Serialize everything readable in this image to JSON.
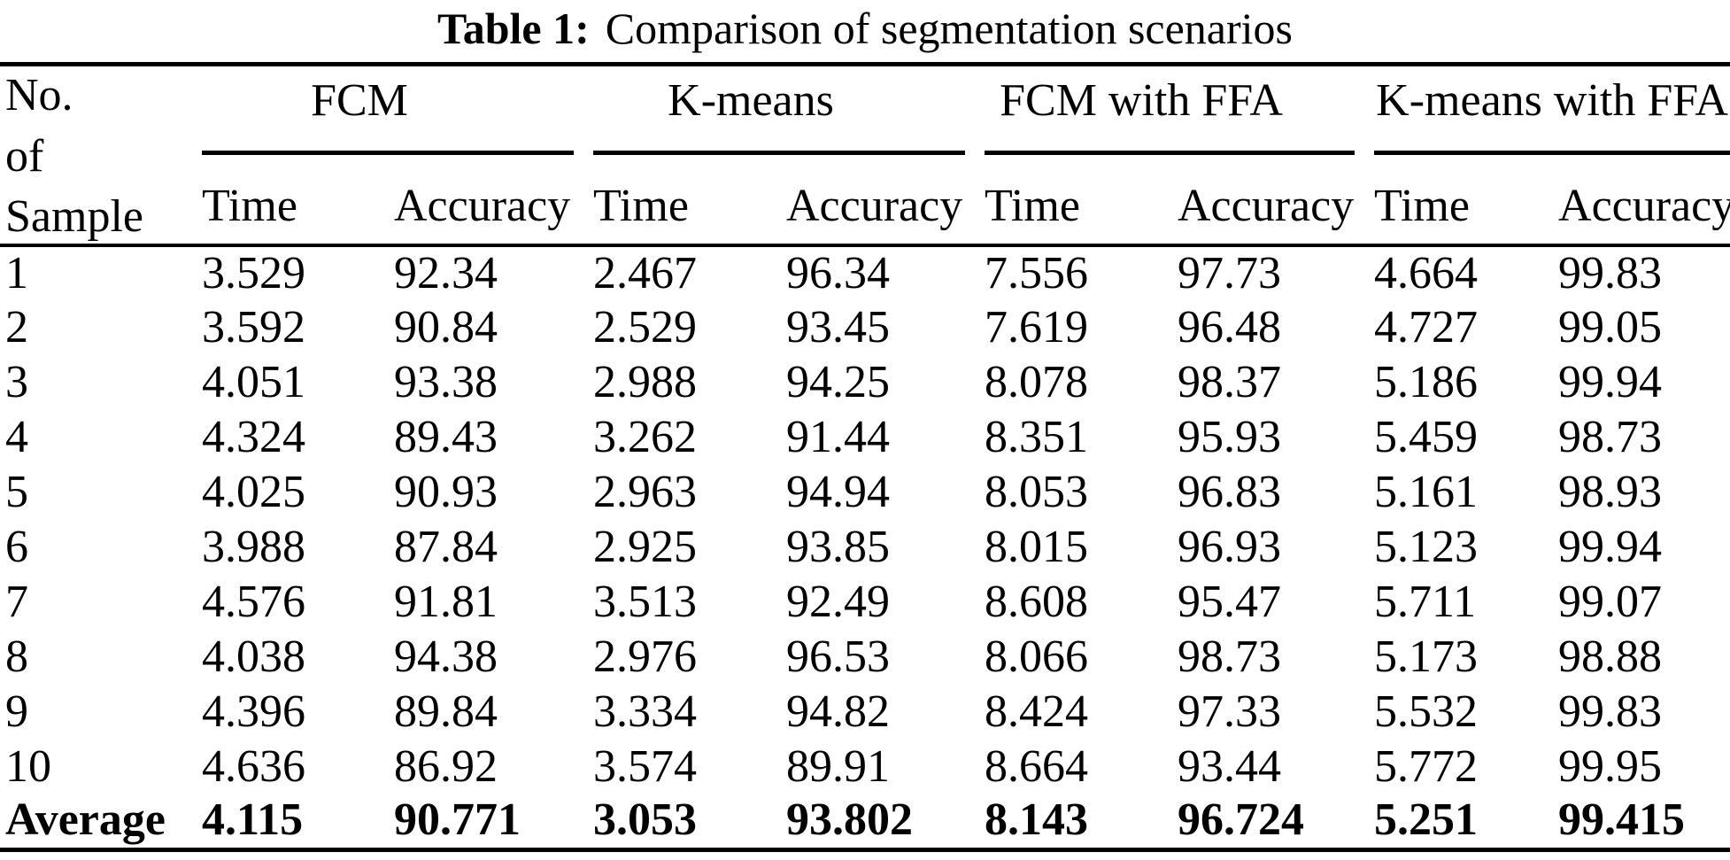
{
  "title": {
    "label": "Table 1:",
    "caption": "Comparison of segmentation scenarios"
  },
  "table": {
    "row_header": {
      "lines": [
        "No.",
        "of",
        "Sample"
      ]
    },
    "groups": [
      {
        "label": "FCM"
      },
      {
        "label": "K-means"
      },
      {
        "label": "FCM with FFA"
      },
      {
        "label": "K-means with FFA"
      }
    ],
    "sub_headers": [
      "Time",
      "Accuracy"
    ],
    "rows": [
      {
        "sample": "1",
        "bold": false,
        "values": [
          "3.529",
          "92.34",
          "2.467",
          "96.34",
          "7.556",
          "97.73",
          "4.664",
          "99.83"
        ]
      },
      {
        "sample": "2",
        "bold": false,
        "values": [
          "3.592",
          "90.84",
          "2.529",
          "93.45",
          "7.619",
          "96.48",
          "4.727",
          "99.05"
        ]
      },
      {
        "sample": "3",
        "bold": false,
        "values": [
          "4.051",
          "93.38",
          "2.988",
          "94.25",
          "8.078",
          "98.37",
          "5.186",
          "99.94"
        ]
      },
      {
        "sample": "4",
        "bold": false,
        "values": [
          "4.324",
          "89.43",
          "3.262",
          "91.44",
          "8.351",
          "95.93",
          "5.459",
          "98.73"
        ]
      },
      {
        "sample": "5",
        "bold": false,
        "values": [
          "4.025",
          "90.93",
          "2.963",
          "94.94",
          "8.053",
          "96.83",
          "5.161",
          "98.93"
        ]
      },
      {
        "sample": "6",
        "bold": false,
        "values": [
          "3.988",
          "87.84",
          "2.925",
          "93.85",
          "8.015",
          "96.93",
          "5.123",
          "99.94"
        ]
      },
      {
        "sample": "7",
        "bold": false,
        "values": [
          "4.576",
          "91.81",
          "3.513",
          "92.49",
          "8.608",
          "95.47",
          "5.711",
          "99.07"
        ]
      },
      {
        "sample": "8",
        "bold": false,
        "values": [
          "4.038",
          "94.38",
          "2.976",
          "96.53",
          "8.066",
          "98.73",
          "5.173",
          "98.88"
        ]
      },
      {
        "sample": "9",
        "bold": false,
        "values": [
          "4.396",
          "89.84",
          "3.334",
          "94.82",
          "8.424",
          "97.33",
          "5.532",
          "99.83"
        ]
      },
      {
        "sample": "10",
        "bold": false,
        "values": [
          "4.636",
          "86.92",
          "3.574",
          "89.91",
          "8.664",
          "93.44",
          "5.772",
          "99.95"
        ]
      },
      {
        "sample": "Average",
        "bold": true,
        "values": [
          "4.115",
          "90.771",
          "3.053",
          "93.802",
          "8.143",
          "96.724",
          "5.251",
          "99.415"
        ]
      }
    ]
  }
}
